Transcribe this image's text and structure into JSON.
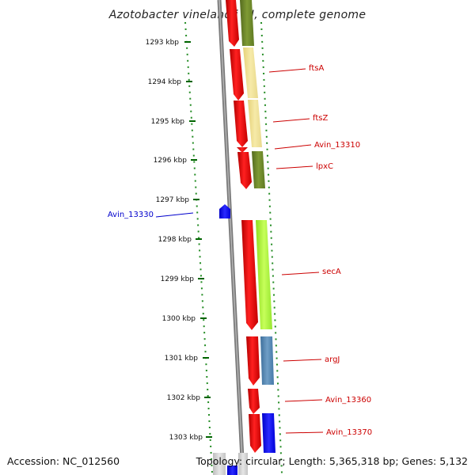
{
  "title": "Azotobacter vinelandii DJ, complete genome",
  "ticks": [
    "1293 kbp",
    "1294 kbp",
    "1295 kbp",
    "1296 kbp",
    "1297 kbp",
    "1298 kbp",
    "1299 kbp",
    "1300 kbp",
    "1301 kbp",
    "1302 kbp",
    "1303 kbp"
  ],
  "genes": [
    {
      "label": "",
      "label_color": "#cc0000",
      "strand_color": "#ff0000",
      "feature_color": "#6b8e23"
    },
    {
      "label": "ftsA",
      "label_color": "#cc0000",
      "strand_color": "#ff0000",
      "feature_color": "#f0e68c"
    },
    {
      "label": "ftsZ",
      "label_color": "#cc0000",
      "strand_color": "#ff0000",
      "feature_color": "#f0e68c"
    },
    {
      "label": "Avin_13310",
      "label_color": "#cc0000",
      "strand_color": "#ff0000",
      "feature_color": ""
    },
    {
      "label": "lpxC",
      "label_color": "#cc0000",
      "strand_color": "#ff0000",
      "feature_color": "#6b8e23"
    },
    {
      "label": "Avin_13330",
      "label_color": "#0000cc",
      "strand_color": "#0000ff",
      "feature_color": ""
    },
    {
      "label": "secA",
      "label_color": "#cc0000",
      "strand_color": "#ff0000",
      "feature_color": "#adff2f"
    },
    {
      "label": "argJ",
      "label_color": "#cc0000",
      "strand_color": "#ff0000",
      "feature_color": "#4682b4"
    },
    {
      "label": "Avin_13360",
      "label_color": "#cc0000",
      "strand_color": "#ff0000",
      "feature_color": ""
    },
    {
      "label": "Avin_13370",
      "label_color": "#cc0000",
      "strand_color": "#ff0000",
      "feature_color": "#0000ff"
    }
  ],
  "footer": {
    "accession": "Accession: NC_012560",
    "summary": "Topology: circular; Length: 5,365,318 bp; Genes: 5,132"
  },
  "colors": {
    "backbone": "#808080",
    "tick_dots": "#228b22",
    "label_text_red": "#cc0000",
    "label_text_blue": "#0000cc"
  }
}
